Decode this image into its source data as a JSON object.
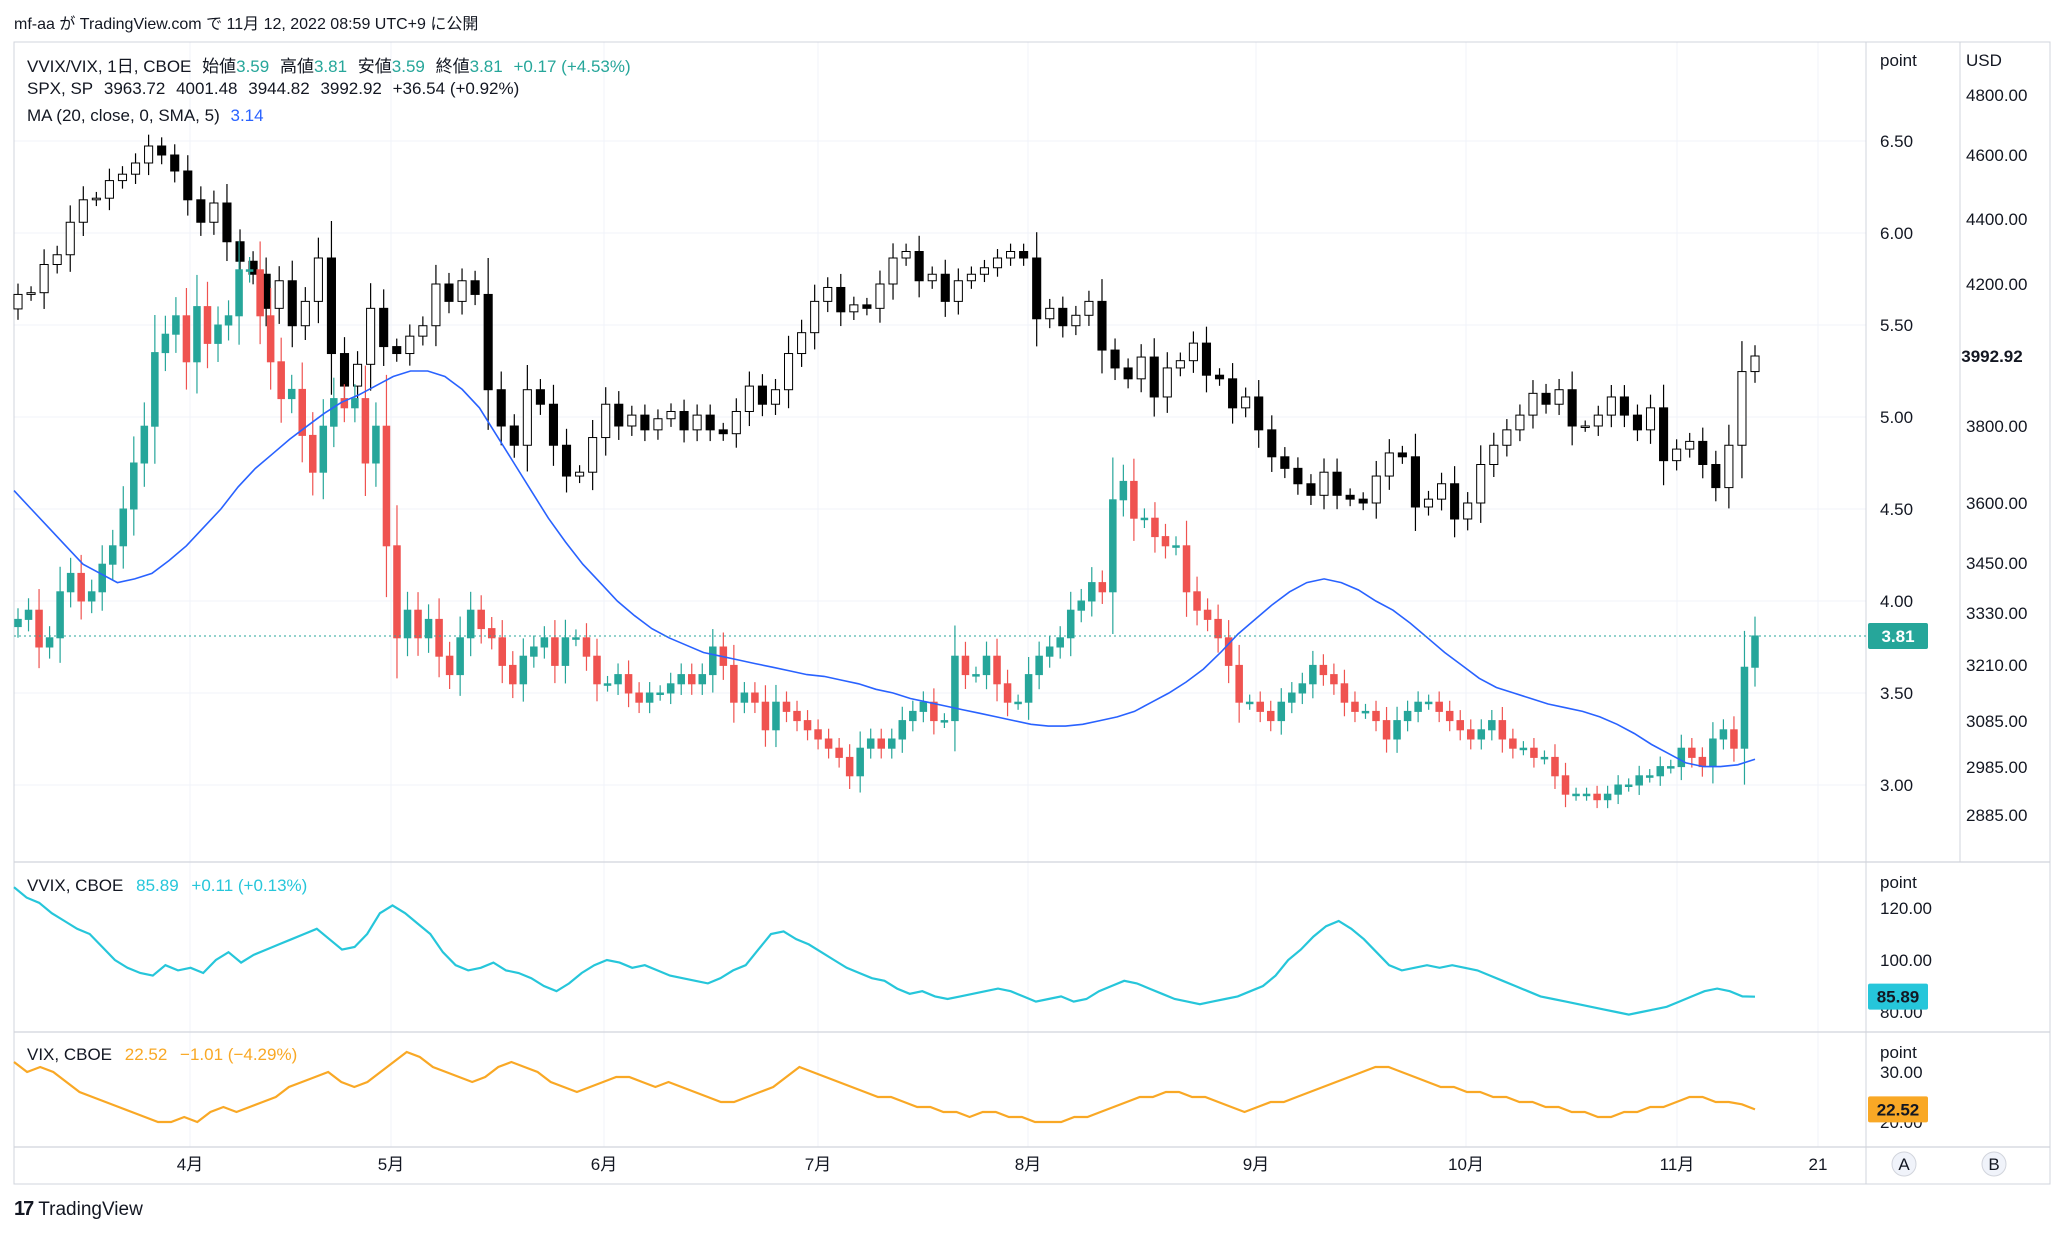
{
  "header": {
    "text": "mf-aa が TradingView.com で 11月 12, 2022 08:59 UTC+9 に公開"
  },
  "footer": {
    "logo": "17",
    "brand": "TradingView"
  },
  "main_legend": {
    "symbol": "VVIX/VIX, 1日, CBOE",
    "o_label": "始値",
    "o": "3.59",
    "h_label": "高値",
    "h": "3.81",
    "l_label": "安値",
    "l": "3.59",
    "c_label": "終値",
    "c": "3.81",
    "chg": "+0.17 (+4.53%)"
  },
  "spx_legend": {
    "symbol": "SPX, SP",
    "o": "3963.72",
    "h": "4001.48",
    "l": "3944.82",
    "c": "3992.92",
    "chg": "+36.54 (+0.92%)"
  },
  "ma_legend": {
    "label": "MA (20, close, 0, SMA, 5)",
    "value": "3.14"
  },
  "vvix_legend": {
    "label": "VVIX, CBOE",
    "value": "85.89",
    "chg": "+0.11 (+0.13%)"
  },
  "vix_legend": {
    "label": "VIX, CBOE",
    "value": "22.52",
    "chg": "−1.01 (−4.29%)"
  },
  "axes": {
    "main_unit": "point",
    "spx_unit": "USD",
    "vvix_unit": "point",
    "vix_unit": "point",
    "main_ticks": [
      "6.50",
      "6.00",
      "5.50",
      "5.00",
      "4.50",
      "4.00",
      "3.50",
      "3.00"
    ],
    "spx_ticks": [
      "4800.00",
      "4600.00",
      "4400.00",
      "4200.00",
      "3800.00",
      "3600.00",
      "3450.00",
      "3330.00",
      "3210.00",
      "3085.00",
      "2985.00",
      "2885.00"
    ],
    "vvix_ticks": [
      "120.00",
      "100.00",
      "80.00"
    ],
    "vix_ticks": [
      "30.00",
      "20.00"
    ],
    "x_ticks": [
      "4月",
      "5月",
      "6月",
      "7月",
      "8月",
      "9月",
      "10月",
      "11月",
      "21"
    ],
    "scale_buttons": [
      "A",
      "B"
    ]
  },
  "badges": {
    "ratio": "3.81",
    "spx": "3992.92",
    "vvix": "85.89",
    "vix": "22.52"
  },
  "colors": {
    "up": "#26a69a",
    "down": "#ef5350",
    "ma": "#2962ff",
    "vvix": "#26c6da",
    "vix": "#f9a825",
    "spx": "#000000"
  },
  "chart_data": {
    "type": "candlestick",
    "title": "VVIX/VIX, 1日, CBOE",
    "x_range": [
      "2022-03-14",
      "2022-11-11"
    ],
    "series": [
      {
        "name": "VVIX/VIX",
        "type": "candlestick",
        "close": [
          3.9,
          3.95,
          3.75,
          3.8,
          4.05,
          4.15,
          4.0,
          4.05,
          4.2,
          4.3,
          4.5,
          4.75,
          4.95,
          5.35,
          5.45,
          5.55,
          5.3,
          5.6,
          5.4,
          5.5,
          5.55,
          5.8,
          5.8,
          5.55,
          5.3,
          5.1,
          5.15,
          4.9,
          4.7,
          4.95,
          5.1,
          5.05,
          5.1,
          4.75,
          4.95,
          4.3,
          3.8,
          3.95,
          3.8,
          3.9,
          3.7,
          3.6,
          3.8,
          3.95,
          3.85,
          3.8,
          3.65,
          3.55,
          3.7,
          3.75,
          3.8,
          3.65,
          3.8,
          3.8,
          3.7,
          3.55,
          3.55,
          3.6,
          3.5,
          3.45,
          3.5,
          3.5,
          3.55,
          3.6,
          3.55,
          3.6,
          3.75,
          3.65,
          3.45,
          3.5,
          3.45,
          3.3,
          3.45,
          3.4,
          3.35,
          3.3,
          3.25,
          3.2,
          3.15,
          3.05,
          3.2,
          3.25,
          3.2,
          3.25,
          3.35,
          3.4,
          3.45,
          3.35,
          3.35,
          3.7,
          3.6,
          3.6,
          3.7,
          3.55,
          3.45,
          3.45,
          3.6,
          3.7,
          3.75,
          3.8,
          3.95,
          4.0,
          4.1,
          4.05,
          4.55,
          4.65,
          4.45,
          4.45,
          4.35,
          4.3,
          4.3,
          4.05,
          3.95,
          3.9,
          3.8,
          3.65,
          3.45,
          3.45,
          3.4,
          3.35,
          3.45,
          3.5,
          3.55,
          3.65,
          3.6,
          3.55,
          3.45,
          3.4,
          3.4,
          3.35,
          3.25,
          3.35,
          3.4,
          3.45,
          3.45,
          3.4,
          3.35,
          3.3,
          3.25,
          3.3,
          3.35,
          3.25,
          3.2,
          3.2,
          3.15,
          3.15,
          3.05,
          2.95,
          2.95,
          2.95,
          2.92,
          2.95,
          3.0,
          3.0,
          3.05,
          3.05,
          3.1,
          3.1,
          3.2,
          3.15,
          3.1,
          3.25,
          3.3,
          3.2,
          3.64,
          3.81
        ],
        "ma20": [
          4.6,
          4.5,
          4.4,
          4.3,
          4.2,
          4.15,
          4.1,
          4.12,
          4.15,
          4.22,
          4.3,
          4.4,
          4.5,
          4.62,
          4.72,
          4.8,
          4.88,
          4.95,
          5.02,
          5.08,
          5.12,
          5.17,
          5.22,
          5.25,
          5.25,
          5.22,
          5.15,
          5.05,
          4.9,
          4.75,
          4.6,
          4.45,
          4.32,
          4.2,
          4.1,
          4.0,
          3.92,
          3.85,
          3.8,
          3.76,
          3.72,
          3.7,
          3.68,
          3.66,
          3.64,
          3.62,
          3.6,
          3.59,
          3.57,
          3.55,
          3.52,
          3.5,
          3.47,
          3.45,
          3.43,
          3.41,
          3.39,
          3.37,
          3.35,
          3.33,
          3.32,
          3.32,
          3.33,
          3.35,
          3.37,
          3.4,
          3.45,
          3.5,
          3.56,
          3.63,
          3.72,
          3.82,
          3.9,
          3.98,
          4.05,
          4.1,
          4.12,
          4.1,
          4.06,
          4.0,
          3.95,
          3.88,
          3.8,
          3.72,
          3.65,
          3.58,
          3.53,
          3.5,
          3.47,
          3.44,
          3.42,
          3.4,
          3.37,
          3.33,
          3.28,
          3.22,
          3.17,
          3.12,
          3.1,
          3.1,
          3.11,
          3.14
        ]
      },
      {
        "name": "SPX",
        "type": "candlestick",
        "close": [
          4170,
          4175,
          4260,
          4290,
          4390,
          4460,
          4465,
          4520,
          4540,
          4575,
          4630,
          4600,
          4550,
          4460,
          4390,
          4450,
          4330,
          4270,
          4230,
          4130,
          4210,
          4080,
          4150,
          4280,
          4000,
          3910,
          3970,
          4130,
          4020,
          4000,
          4050,
          4080,
          4200,
          4150,
          4210,
          4170,
          3900,
          3800,
          3750,
          3900,
          3860,
          3750,
          3670,
          3680,
          3770,
          3860,
          3800,
          3830,
          3790,
          3820,
          3840,
          3790,
          3830,
          3790,
          3780,
          3840,
          3910,
          3860,
          3900,
          4000,
          4060,
          4150,
          4190,
          4120,
          4140,
          4130,
          4200,
          4280,
          4300,
          4210,
          4230,
          4150,
          4210,
          4230,
          4250,
          4280,
          4300,
          4280,
          4100,
          4130,
          4080,
          4110,
          4150,
          4010,
          3960,
          3930,
          3990,
          3880,
          3960,
          3980,
          4030,
          3940,
          3930,
          3850,
          3880,
          3790,
          3720,
          3690,
          3650,
          3620,
          3680,
          3620,
          3610,
          3600,
          3670,
          3730,
          3720,
          3590,
          3610,
          3650,
          3560,
          3600,
          3700,
          3750,
          3790,
          3830,
          3890,
          3860,
          3900,
          3800,
          3800,
          3830,
          3880,
          3830,
          3790,
          3850,
          3710,
          3740,
          3760,
          3700,
          3640,
          3750,
          3950,
          3992.92
        ]
      }
    ],
    "vvix": {
      "values": [
        128,
        124,
        122,
        118,
        115,
        112,
        110,
        105,
        100,
        97,
        95,
        94,
        98,
        96,
        97,
        95,
        100,
        103,
        99,
        102,
        104,
        106,
        108,
        110,
        112,
        108,
        104,
        105,
        110,
        118,
        121,
        118,
        114,
        110,
        103,
        98,
        96,
        97,
        99,
        96,
        95,
        93,
        90,
        88,
        91,
        95,
        98,
        100,
        99,
        97,
        98,
        96,
        94,
        93,
        92,
        91,
        93,
        96,
        98,
        104,
        110,
        111,
        108,
        106,
        103,
        100,
        97,
        95,
        93,
        92,
        89,
        87,
        88,
        86,
        85,
        86,
        87,
        88,
        89,
        88,
        86,
        84,
        85,
        86,
        84,
        85,
        88,
        90,
        92,
        91,
        89,
        87,
        85,
        84,
        83,
        84,
        85,
        86,
        88,
        90,
        94,
        100,
        104,
        109,
        113,
        115,
        112,
        108,
        103,
        98,
        96,
        97,
        98,
        97,
        98,
        97,
        96,
        94,
        92,
        90,
        88,
        86,
        85,
        84,
        83,
        82,
        81,
        80,
        79,
        80,
        81,
        82,
        84,
        86,
        88,
        89,
        88,
        86,
        85.89
      ]
    },
    "vix": {
      "values": [
        32,
        30,
        31,
        30,
        28,
        26,
        25,
        24,
        23,
        22,
        21,
        20,
        20,
        21,
        20,
        22,
        23,
        22,
        23,
        24,
        25,
        27,
        28,
        29,
        30,
        28,
        27,
        28,
        30,
        32,
        34,
        33,
        31,
        30,
        29,
        28,
        29,
        31,
        32,
        31,
        30,
        28,
        27,
        26,
        27,
        28,
        29,
        29,
        28,
        27,
        28,
        27,
        26,
        25,
        24,
        24,
        25,
        26,
        27,
        29,
        31,
        30,
        29,
        28,
        27,
        26,
        25,
        25,
        24,
        23,
        23,
        22,
        22,
        21,
        22,
        22,
        21,
        21,
        20,
        20,
        20,
        21,
        21,
        22,
        23,
        24,
        25,
        25,
        26,
        26,
        25,
        25,
        24,
        23,
        22,
        23,
        24,
        24,
        25,
        26,
        27,
        28,
        29,
        30,
        31,
        31,
        30,
        29,
        28,
        27,
        27,
        26,
        26,
        25,
        25,
        24,
        24,
        23,
        23,
        22,
        22,
        21,
        21,
        22,
        22,
        23,
        23,
        24,
        25,
        25,
        24,
        24,
        23.53,
        22.52
      ]
    }
  }
}
